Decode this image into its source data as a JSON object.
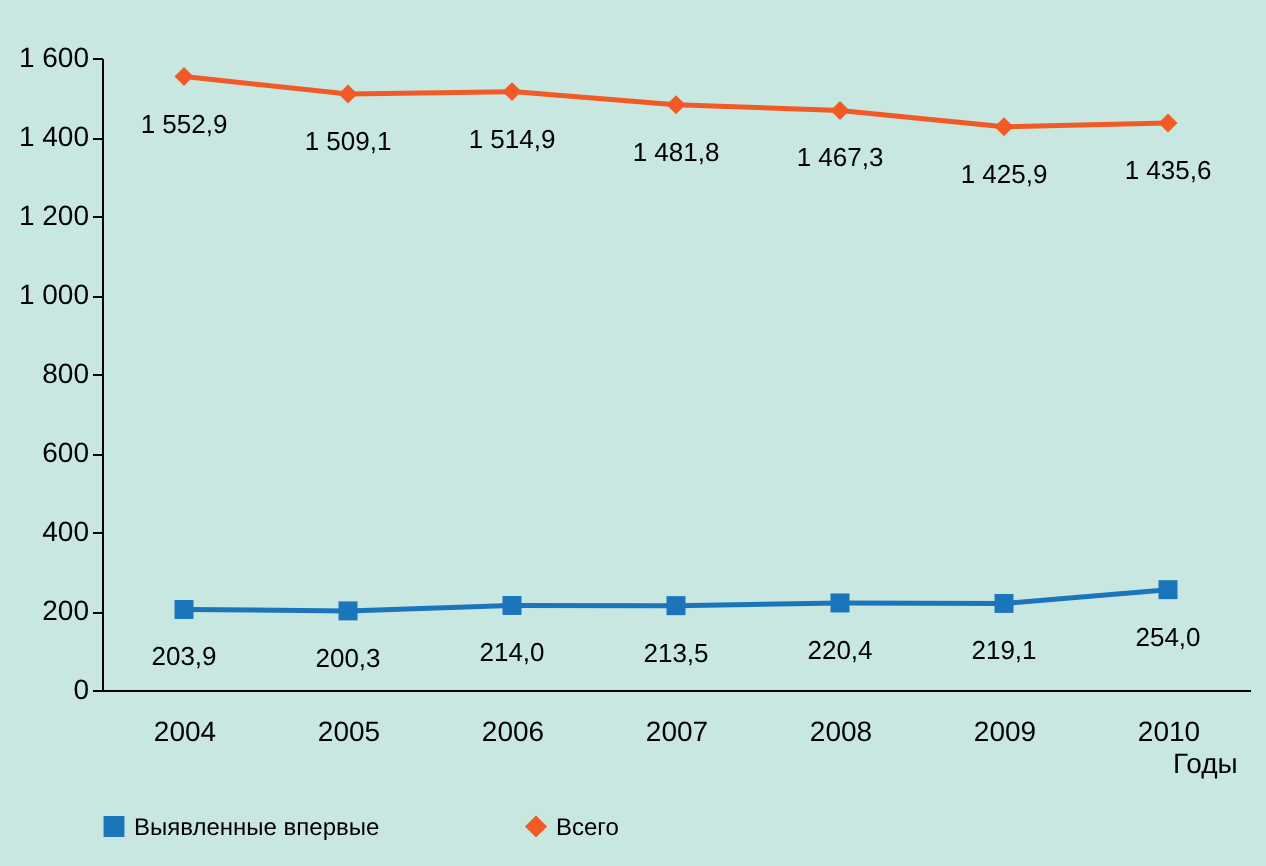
{
  "chart_data": {
    "type": "line",
    "xlabel": "Годы",
    "categories": [
      "2004",
      "2005",
      "2006",
      "2007",
      "2008",
      "2009",
      "2010"
    ],
    "series": [
      {
        "name": "Выявленные впервые",
        "color": "#1b75bb",
        "marker": "square",
        "values": [
          203.9,
          200.3,
          214.0,
          213.5,
          220.4,
          219.1,
          254.0
        ],
        "value_labels": [
          "203,9",
          "200,3",
          "214,0",
          "213,5",
          "220,4",
          "219,1",
          "254,0"
        ]
      },
      {
        "name": "Всего",
        "color": "#f15a24",
        "marker": "diamond",
        "values": [
          1552.9,
          1509.1,
          1514.9,
          1481.8,
          1467.3,
          1425.9,
          1435.6
        ],
        "value_labels": [
          "1 552,9",
          "1 509,1",
          "1 514,9",
          "1 481,8",
          "1 467,3",
          "1 425,9",
          "1 435,6"
        ]
      }
    ],
    "ylim": [
      0,
      1600
    ],
    "yticks": [
      0,
      200,
      400,
      600,
      800,
      {
        "value": 1000,
        "label": "1 000"
      },
      {
        "value": 1200,
        "label": "1 200"
      },
      {
        "value": 1400,
        "label": "1 400"
      },
      {
        "value": 1600,
        "label": "1 600"
      }
    ],
    "grid": false,
    "legend": "bottom",
    "line_style": "solid"
  }
}
